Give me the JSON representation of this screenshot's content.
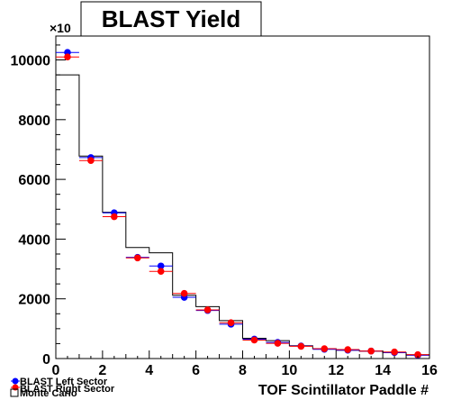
{
  "chart_data": {
    "type": "histogram",
    "title": "BLAST Yield",
    "xlabel": "TOF Scintillator Paddle #",
    "ylabel": "",
    "y_exponent_label": "×10",
    "xlim": [
      0,
      16
    ],
    "ylim": [
      0,
      10800
    ],
    "x_ticks": [
      "0",
      "2",
      "4",
      "6",
      "8",
      "10",
      "12",
      "14",
      "16"
    ],
    "y_ticks": [
      "0",
      "2000",
      "4000",
      "6000",
      "8000",
      "10000"
    ],
    "grid": false,
    "legend_position": "bottom-left",
    "bin_edges": [
      0,
      1,
      2,
      3,
      4,
      5,
      6,
      7,
      8,
      9,
      10,
      11,
      12,
      13,
      14,
      15,
      16
    ],
    "series": [
      {
        "name": "BLAST Left Sector",
        "style": "markers",
        "color": "#0000ff",
        "values": [
          10250,
          6730,
          4880,
          3390,
          3100,
          2050,
          1610,
          1150,
          650,
          540,
          420,
          310,
          280,
          250,
          200,
          110
        ]
      },
      {
        "name": "BLAST Right Sector",
        "style": "markers",
        "color": "#ff0000",
        "values": [
          10100,
          6630,
          4750,
          3370,
          2920,
          2180,
          1630,
          1200,
          620,
          510,
          410,
          330,
          300,
          250,
          220,
          130
        ]
      },
      {
        "name": "Monte Carlo",
        "style": "step",
        "color": "#000000",
        "values": [
          9500,
          6780,
          4900,
          3720,
          3540,
          2120,
          1740,
          1270,
          680,
          600,
          430,
          330,
          280,
          250,
          200,
          130
        ]
      }
    ]
  }
}
